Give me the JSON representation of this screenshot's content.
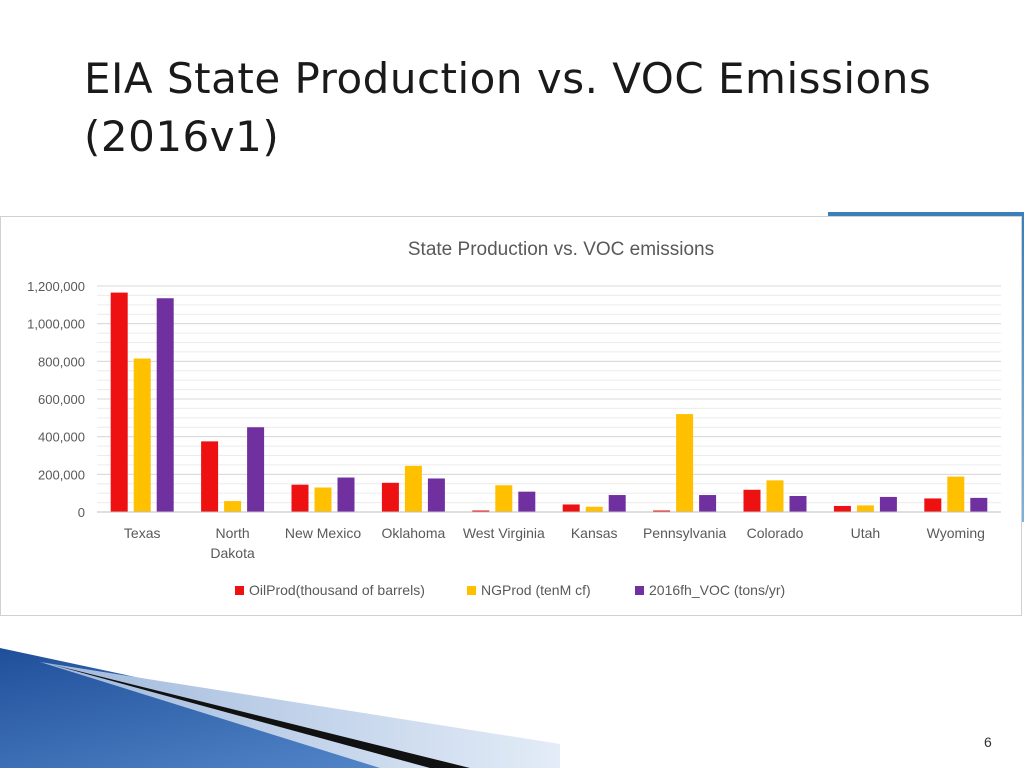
{
  "slide": {
    "title_line1": "EIA State Production vs. VOC Emissions",
    "title_line2": "(2016v1)",
    "page_number": "6"
  },
  "colors": {
    "oil": "#ee1111",
    "ng": "#ffc000",
    "voc": "#7030a0",
    "grid": "#d9d9d9",
    "axis_text": "#595959"
  },
  "chart_data": {
    "type": "bar",
    "title": "State Production vs. VOC emissions",
    "xlabel": "",
    "ylabel": "",
    "ylim": [
      0,
      1200000
    ],
    "yticks": [
      0,
      200000,
      400000,
      600000,
      800000,
      1000000,
      1200000
    ],
    "ytick_labels": [
      "0",
      "200,000",
      "400,000",
      "600,000",
      "800,000",
      "1,000,000",
      "1,200,000"
    ],
    "categories": [
      "Texas",
      "North Dakota",
      "New Mexico",
      "Oklahoma",
      "West Virginia",
      "Kansas",
      "Pennsylvania",
      "Colorado",
      "Utah",
      "Wyoming"
    ],
    "category_label_lines": [
      [
        "Texas"
      ],
      [
        "North",
        "Dakota"
      ],
      [
        "New Mexico"
      ],
      [
        "Oklahoma"
      ],
      [
        "West Virginia"
      ],
      [
        "Kansas"
      ],
      [
        "Pennsylvania"
      ],
      [
        "Colorado"
      ],
      [
        "Utah"
      ],
      [
        "Wyoming"
      ]
    ],
    "series": [
      {
        "name": "OilProd(thousand of barrels)",
        "key": "oil",
        "values": [
          1165000,
          375000,
          145000,
          155000,
          8000,
          40000,
          8000,
          118000,
          32000,
          72000
        ]
      },
      {
        "name": "NGProd (tenM cf)",
        "key": "ng",
        "values": [
          815000,
          58000,
          130000,
          245000,
          142000,
          28000,
          520000,
          168000,
          35000,
          188000
        ]
      },
      {
        "name": "2016fh_VOC (tons/yr)",
        "key": "voc",
        "values": [
          1135000,
          450000,
          183000,
          178000,
          108000,
          90000,
          90000,
          85000,
          80000,
          75000
        ]
      }
    ],
    "grid": true,
    "legend_position": "bottom"
  }
}
